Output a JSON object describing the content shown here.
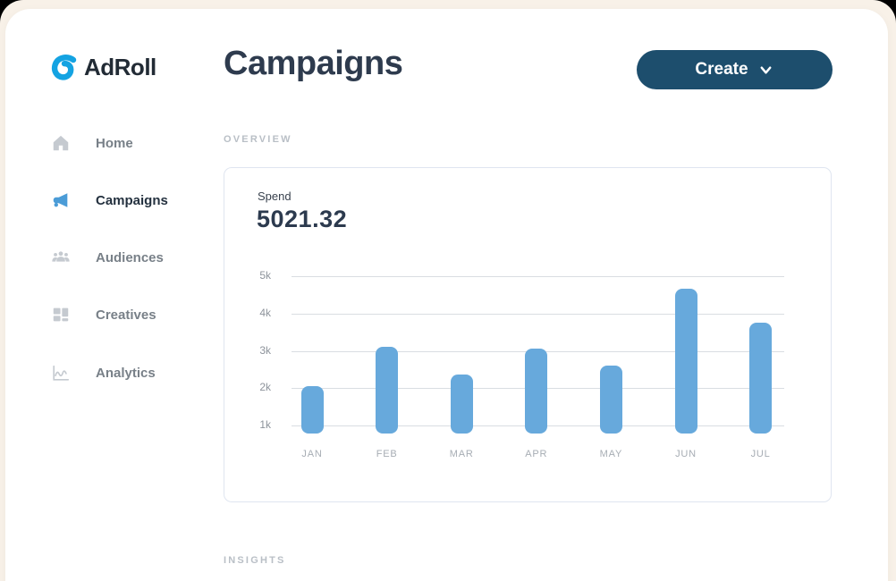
{
  "app": {
    "brand": "AdRoll",
    "accent_color": "#14a3e2"
  },
  "header": {
    "title": "Campaigns",
    "create_button": {
      "label": "Create",
      "color": "#1d4e6d"
    }
  },
  "sidebar": {
    "items": [
      {
        "label": "Home",
        "icon": "home-icon",
        "active": false
      },
      {
        "label": "Campaigns",
        "icon": "megaphone-icon",
        "active": true
      },
      {
        "label": "Audiences",
        "icon": "people-icon",
        "active": false
      },
      {
        "label": "Creatives",
        "icon": "blocks-icon",
        "active": false
      },
      {
        "label": "Analytics",
        "icon": "line-chart-icon",
        "active": false
      }
    ]
  },
  "main": {
    "overview_label": "OVERVIEW",
    "insights_label": "INSIGHTS"
  },
  "chart_data": {
    "type": "bar",
    "title": "Spend",
    "total_value": "5021.32",
    "categories": [
      "JAN",
      "FEB",
      "MAR",
      "APR",
      "MAY",
      "JUN",
      "JUL"
    ],
    "values": [
      2050,
      3100,
      2350,
      3050,
      2600,
      4650,
      3750
    ],
    "y_ticks": [
      "5k",
      "4k",
      "3k",
      "2k",
      "1k"
    ],
    "y_tick_values": [
      5000,
      4000,
      3000,
      2000,
      1000
    ],
    "ylim": [
      760,
      5300
    ],
    "grid": true,
    "legend": false,
    "bar_color": "#67a9dc",
    "gridline_color": "#d9dde2"
  }
}
